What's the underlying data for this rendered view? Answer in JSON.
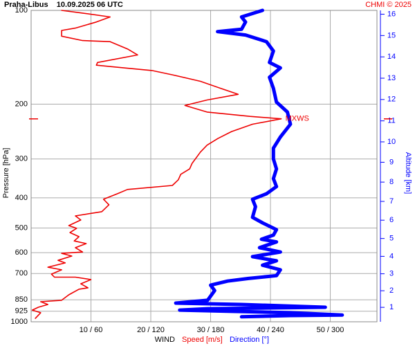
{
  "chart_data": {
    "type": "sounding",
    "title": "Praha-Libus    10.09.2025 06 UTC",
    "credit": "CHMI © 2025",
    "ylabel": "Pressure [hPa]",
    "y2label": "Altitude [km]",
    "xlabel": "WIND",
    "ylog": true,
    "ylim": [
      1000,
      100
    ],
    "yticks": [
      100,
      200,
      300,
      400,
      500,
      600,
      700,
      850,
      925,
      1000
    ],
    "y2ticks": [
      1,
      2,
      3,
      4,
      5,
      6,
      7,
      8,
      9,
      10,
      11,
      12,
      13,
      14,
      15,
      16
    ],
    "y2color": "#0000ff",
    "xlim": [
      0,
      57.8
    ],
    "x2lim": [
      0,
      346.8
    ],
    "xticks": [
      {
        "value": 10,
        "label": "10 / 60"
      },
      {
        "value": 20,
        "label": "20 / 120"
      },
      {
        "value": 30,
        "label": "30 / 180"
      },
      {
        "value": 40,
        "label": "40 / 240"
      },
      {
        "value": 50,
        "label": "50 / 300"
      }
    ],
    "grid": true,
    "series": [
      {
        "name": "Speed [m/s]",
        "color": "#ee0000",
        "width": 1.6,
        "pressure": [
          975,
          935,
          917,
          898,
          880,
          862,
          853,
          819,
          786,
          778,
          755,
          732,
          719,
          719,
          703,
          681,
          668,
          647,
          635,
          615,
          603,
          597,
          578,
          561,
          550,
          533,
          517,
          501,
          491,
          471,
          457,
          443,
          421,
          404,
          388,
          376,
          365,
          350,
          336,
          323,
          310,
          285,
          271,
          258,
          245,
          232,
          223,
          219,
          212,
          202,
          194,
          186,
          178,
          169,
          161,
          156,
          153,
          150,
          147,
          139,
          133,
          126,
          125,
          121,
          116,
          114,
          109,
          105,
          102,
          100
        ],
        "values": [
          0.7,
          1.6,
          0.2,
          1.2,
          2.8,
          1.6,
          5.1,
          6.3,
          8.0,
          9.5,
          8.3,
          10.0,
          7.4,
          3.9,
          3.4,
          5.1,
          2.8,
          5.7,
          4.5,
          6.8,
          5.1,
          8.6,
          7.4,
          9.2,
          7.2,
          8.0,
          6.5,
          7.6,
          6.3,
          8.3,
          7.4,
          11.8,
          13.0,
          12.1,
          14.4,
          16.1,
          23.6,
          24.6,
          25.0,
          26.5,
          26.9,
          28.3,
          29.4,
          31.2,
          33.5,
          37.0,
          41.8,
          36.6,
          29.4,
          25.7,
          29.4,
          34.6,
          31.7,
          28.3,
          23.6,
          20.2,
          15.5,
          10.9,
          11.1,
          17.8,
          16.1,
          13.2,
          8.6,
          5.1,
          5.1,
          7.4,
          10.9,
          13.2,
          8.6,
          5.1
        ]
      },
      {
        "name": "Direction [°]",
        "color": "#0000ff",
        "width": 5,
        "axis": "x2",
        "pressure": [
          964,
          955,
          951,
          935,
          917,
          908,
          898,
          880,
          871,
          853,
          794,
          763,
          740,
          726,
          711,
          681,
          658,
          637,
          618,
          597,
          578,
          554,
          543,
          527,
          506,
          481,
          462,
          427,
          404,
          388,
          368,
          347,
          323,
          300,
          277,
          255,
          232,
          212,
          197,
          178,
          164,
          153,
          147,
          135,
          126,
          120,
          117,
          115,
          109,
          105,
          100
        ],
        "values": [
          211,
          260,
          312,
          260,
          149,
          177,
          295,
          211,
          145,
          177,
          184,
          180,
          197,
          218,
          246,
          250,
          232,
          246,
          222,
          250,
          229,
          246,
          231,
          243,
          246,
          232,
          222,
          225,
          222,
          236,
          246,
          243,
          246,
          243,
          243,
          250,
          260,
          257,
          246,
          243,
          239,
          250,
          239,
          243,
          236,
          215,
          187,
          211,
          215,
          211,
          232
        ]
      }
    ],
    "max_wind": {
      "label": "MXWS",
      "pressure": 223,
      "speed": 41.8,
      "color": "#ee0000"
    }
  }
}
